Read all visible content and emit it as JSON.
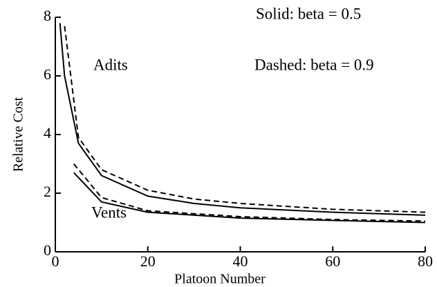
{
  "chart_data": {
    "type": "line",
    "xlabel": "Platoon Number",
    "ylabel": "Relative Cost",
    "xlim": [
      0,
      80
    ],
    "ylim": [
      0,
      8
    ],
    "xticks": [
      0,
      20,
      40,
      60,
      80
    ],
    "yticks": [
      0,
      2,
      4,
      6,
      8
    ],
    "annotations": [
      "Solid:  beta = 0.5",
      "Dashed: beta = 0.9",
      "Adits",
      "Vents"
    ],
    "series": [
      {
        "name": "Adits",
        "color": "#000000",
        "style": "solid",
        "x": [
          1,
          2,
          5,
          10,
          20,
          30,
          40,
          60,
          80
        ],
        "values": [
          7.8,
          6.0,
          3.7,
          2.6,
          1.9,
          1.65,
          1.5,
          1.35,
          1.25
        ]
      },
      {
        "name": "Adits",
        "color": "#000000",
        "style": "dashed",
        "x": [
          2,
          5,
          10,
          20,
          30,
          40,
          60,
          80
        ],
        "values": [
          7.7,
          3.9,
          2.8,
          2.1,
          1.8,
          1.65,
          1.45,
          1.35
        ]
      },
      {
        "name": "Vents",
        "color": "#000000",
        "style": "solid",
        "x": [
          4,
          10,
          20,
          40,
          60,
          80
        ],
        "values": [
          2.7,
          1.7,
          1.35,
          1.15,
          1.07,
          1.0
        ]
      },
      {
        "name": "Vents",
        "color": "#000000",
        "style": "dashed",
        "x": [
          4,
          10,
          20,
          40,
          60,
          80
        ],
        "values": [
          3.0,
          1.85,
          1.4,
          1.2,
          1.1,
          1.05
        ]
      }
    ]
  }
}
